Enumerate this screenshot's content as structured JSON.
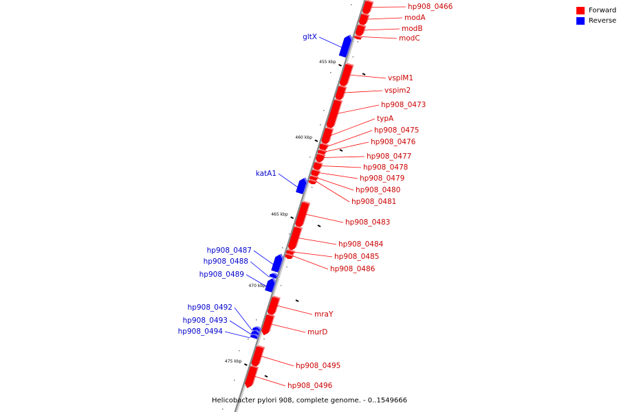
{
  "caption": "Helicobacter pylori 908, complete genome. - 0..1549666",
  "legend": [
    {
      "label": "Forward",
      "color": "#ff0000"
    },
    {
      "label": "Reverse",
      "color": "#0000ff"
    }
  ],
  "colors": {
    "forward": "#ff0000",
    "reverse": "#0000ff",
    "backbone": "#888888"
  },
  "ticks": [
    "455 kbp",
    "460 kbp",
    "465 kbp",
    "470 kbp",
    "475 kbp"
  ],
  "genes": [
    {
      "name": "hp908_0466",
      "strand": "forward"
    },
    {
      "name": "modA",
      "strand": "forward"
    },
    {
      "name": "modB",
      "strand": "forward"
    },
    {
      "name": "modC",
      "strand": "forward"
    },
    {
      "name": "gltX",
      "strand": "reverse"
    },
    {
      "name": "vsplM1",
      "strand": "forward"
    },
    {
      "name": "vspim2",
      "strand": "forward"
    },
    {
      "name": "hp908_0473",
      "strand": "forward"
    },
    {
      "name": "typA",
      "strand": "forward"
    },
    {
      "name": "hp908_0475",
      "strand": "forward"
    },
    {
      "name": "hp908_0476",
      "strand": "forward"
    },
    {
      "name": "hp908_0477",
      "strand": "forward"
    },
    {
      "name": "hp908_0478",
      "strand": "forward"
    },
    {
      "name": "hp908_0479",
      "strand": "forward"
    },
    {
      "name": "hp908_0480",
      "strand": "forward"
    },
    {
      "name": "hp908_0481",
      "strand": "forward"
    },
    {
      "name": "katA1",
      "strand": "reverse"
    },
    {
      "name": "hp908_0483",
      "strand": "forward"
    },
    {
      "name": "hp908_0484",
      "strand": "forward"
    },
    {
      "name": "hp908_0485",
      "strand": "forward"
    },
    {
      "name": "hp908_0486",
      "strand": "forward"
    },
    {
      "name": "hp908_0487",
      "strand": "reverse"
    },
    {
      "name": "hp908_0488",
      "strand": "reverse"
    },
    {
      "name": "hp908_0489",
      "strand": "reverse"
    },
    {
      "name": "mraY",
      "strand": "forward"
    },
    {
      "name": "murD",
      "strand": "forward"
    },
    {
      "name": "hp908_0492",
      "strand": "reverse"
    },
    {
      "name": "hp908_0493",
      "strand": "reverse"
    },
    {
      "name": "hp908_0494",
      "strand": "reverse"
    },
    {
      "name": "hp908_0495",
      "strand": "forward"
    },
    {
      "name": "hp908_0496",
      "strand": "forward"
    }
  ]
}
